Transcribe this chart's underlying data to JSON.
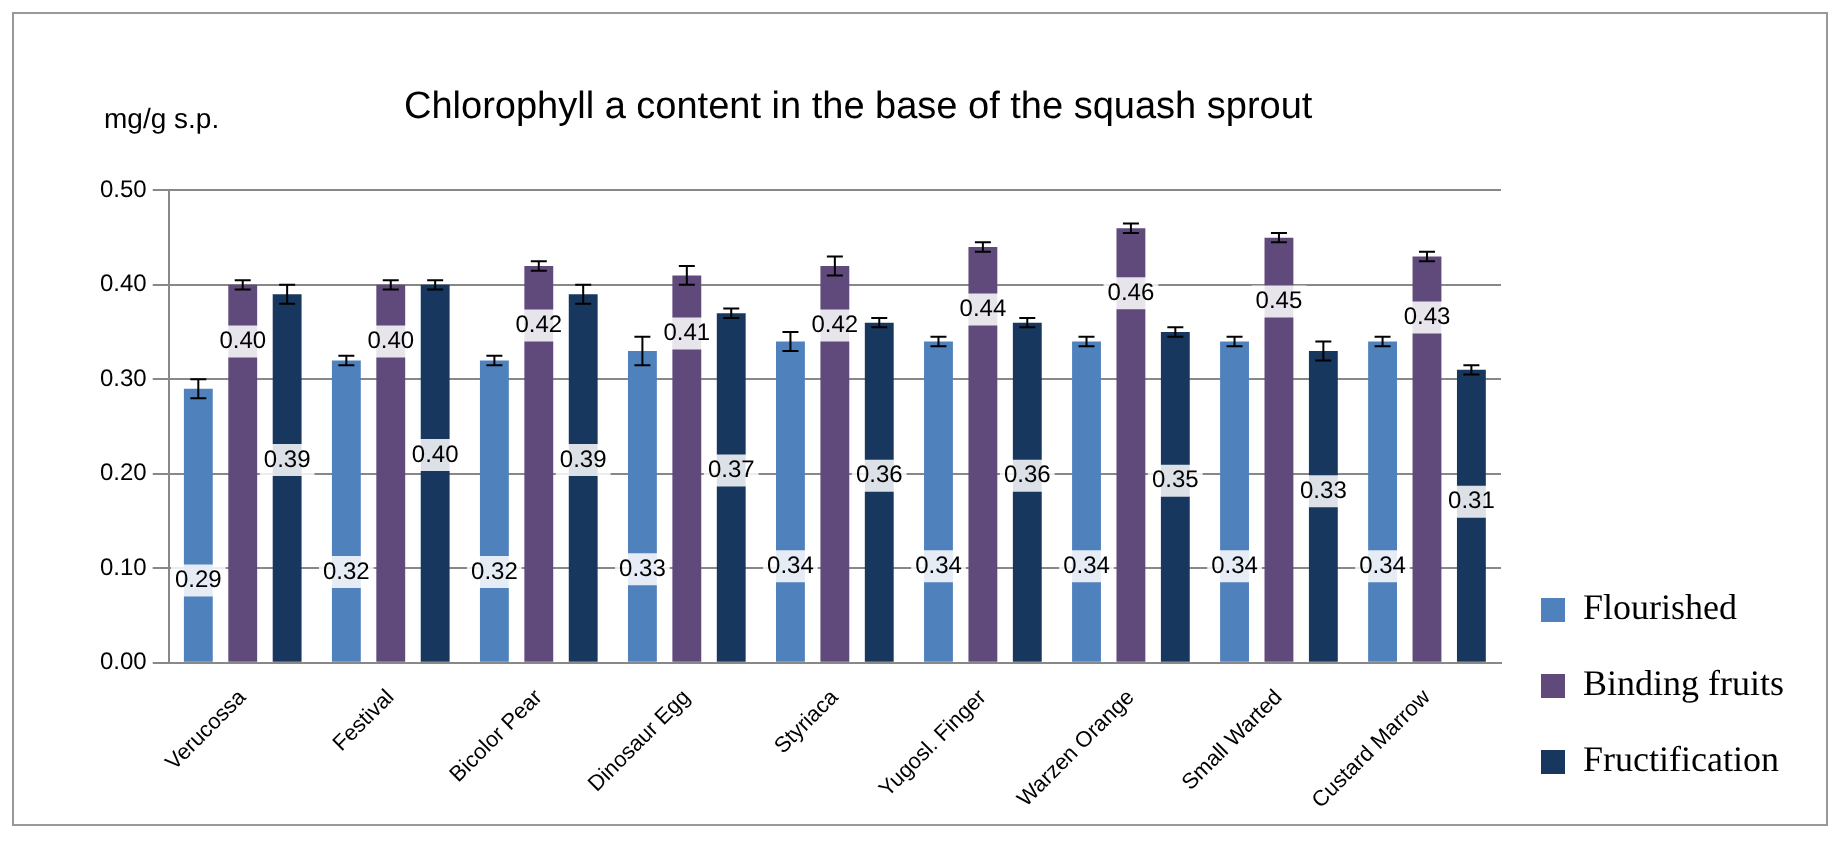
{
  "chart_data": {
    "type": "bar",
    "title": "Chlorophyll a content in the base of the squash sprout",
    "ylabel": "mg/g s.p.",
    "categories": [
      "Verucossa",
      "Festival",
      "Bicolor Pear",
      "Dinosaur Egg",
      "Styriaca",
      "Yugosl. Finger",
      "Warzen Orange",
      "Small Warted",
      "Custard Marrow"
    ],
    "series": [
      {
        "name": "Flourished",
        "color": "#4f81bd",
        "values": [
          0.29,
          0.32,
          0.32,
          0.33,
          0.34,
          0.34,
          0.34,
          0.34,
          0.34
        ],
        "value_labels": [
          "0.29",
          "0.32",
          "0.32",
          "0.33",
          "0.34",
          "0.34",
          "0.34",
          "0.34",
          "0.34"
        ],
        "errors": [
          0.01,
          0.005,
          0.005,
          0.015,
          0.01,
          0.005,
          0.005,
          0.005,
          0.005
        ]
      },
      {
        "name": "Binding fruits",
        "color": "#604a7b",
        "values": [
          0.4,
          0.4,
          0.42,
          0.41,
          0.42,
          0.44,
          0.46,
          0.45,
          0.43
        ],
        "value_labels": [
          "0.40",
          "0.40",
          "0.42",
          "0.41",
          "0.42",
          "0.44",
          "0.46",
          "0.45",
          "0.43"
        ],
        "errors": [
          0.005,
          0.005,
          0.005,
          0.01,
          0.01,
          0.005,
          0.005,
          0.005,
          0.005
        ]
      },
      {
        "name": "Fructification",
        "color": "#17375e",
        "values": [
          0.39,
          0.4,
          0.39,
          0.37,
          0.36,
          0.36,
          0.35,
          0.33,
          0.31
        ],
        "value_labels": [
          "0.39",
          "0.40",
          "0.39",
          "0.37",
          "0.36",
          "0.36",
          "0.35",
          "0.33",
          "0.31"
        ],
        "errors": [
          0.01,
          0.005,
          0.01,
          0.005,
          0.005,
          0.005,
          0.005,
          0.01,
          0.005
        ]
      }
    ],
    "ylim": [
      0,
      0.5
    ],
    "yticks": [
      {
        "value": 0,
        "label": "0.00"
      },
      {
        "value": 0.1,
        "label": "0.10"
      },
      {
        "value": 0.2,
        "label": "0.20"
      },
      {
        "value": 0.3,
        "label": "0.30"
      },
      {
        "value": 0.4,
        "label": "0.40"
      },
      {
        "value": 0.5,
        "label": "0.50"
      }
    ],
    "grid": "y",
    "legend": "bottom right"
  }
}
